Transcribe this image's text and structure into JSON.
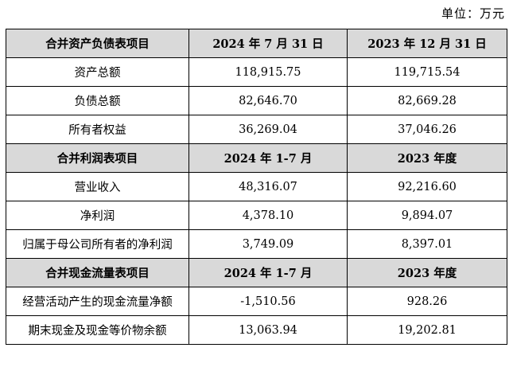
{
  "unit_label": "单位：万元",
  "sections": [
    {
      "header": [
        "合并资产负债表项目",
        "2024 年 7 月 31 日",
        "2023 年 12 月 31 日"
      ],
      "rows": [
        [
          "资产总额",
          "118,915.75",
          "119,715.54"
        ],
        [
          "负债总额",
          "82,646.70",
          "82,669.28"
        ],
        [
          "所有者权益",
          "36,269.04",
          "37,046.26"
        ]
      ]
    },
    {
      "header": [
        "合并利润表项目",
        "2024 年 1-7 月",
        "2023 年度"
      ],
      "rows": [
        [
          "营业收入",
          "48,316.07",
          "92,216.60"
        ],
        [
          "净利润",
          "4,378.10",
          "9,894.07"
        ],
        [
          "归属于母公司所有者的净利润",
          "3,749.09",
          "8,397.01"
        ]
      ]
    },
    {
      "header": [
        "合并现金流量表项目",
        "2024 年 1-7 月",
        "2023 年度"
      ],
      "rows": [
        [
          "经营活动产生的现金流量净额",
          "-1,510.56",
          "928.26"
        ],
        [
          "期末现金及现金等价物余额",
          "13,063.94",
          "19,202.81"
        ]
      ]
    }
  ],
  "colors": {
    "header_bg": "#d9d9d9",
    "border": "#000000",
    "text": "#000000"
  }
}
